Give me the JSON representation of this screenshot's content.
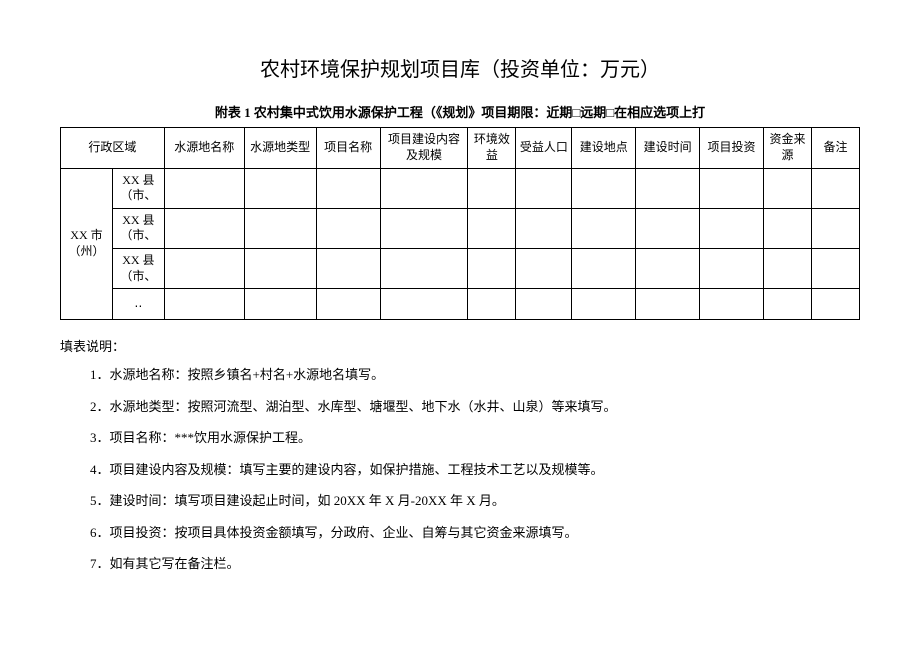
{
  "title": "农村环境保护规划项目库（投资单位：万元）",
  "subtitle": "附表 1 农村集中式饮用水源保护工程（《规划》项目期限：近期□远期□在相应选项上打",
  "table": {
    "header": {
      "region": "行政区域",
      "water_name": "水源地名称",
      "water_type": "水源地类型",
      "project_name": "项目名称",
      "content_scale": "项目建设内容及规模",
      "env_benefit": "环境效益",
      "population": "受益人口",
      "location": "建设地点",
      "time": "建设时间",
      "investment": "项目投资",
      "fund_source": "资金来源",
      "remark": "备注"
    },
    "region_parent": "XX 市（州）",
    "region_children": [
      "XX 县（市、",
      "XX 县（市、",
      "XX 县（市、",
      "‥"
    ]
  },
  "notes_header": "填表说明：",
  "notes": [
    "1．水源地名称：按照乡镇名+村名+水源地名填写。",
    "2．水源地类型：按照河流型、湖泊型、水库型、塘堰型、地下水（水井、山泉）等来填写。",
    "3．项目名称：***饮用水源保护工程。",
    "4．项目建设内容及规模：填写主要的建设内容，如保护措施、工程技术工艺以及规模等。",
    "5．建设时间：填写项目建设起止时间，如 20XX 年 X 月-20XX 年 X 月。",
    "6．项目投资：按项目具体投资金额填写，分政府、企业、自筹与其它资金来源填写。",
    "7．如有其它写在备注栏。"
  ]
}
